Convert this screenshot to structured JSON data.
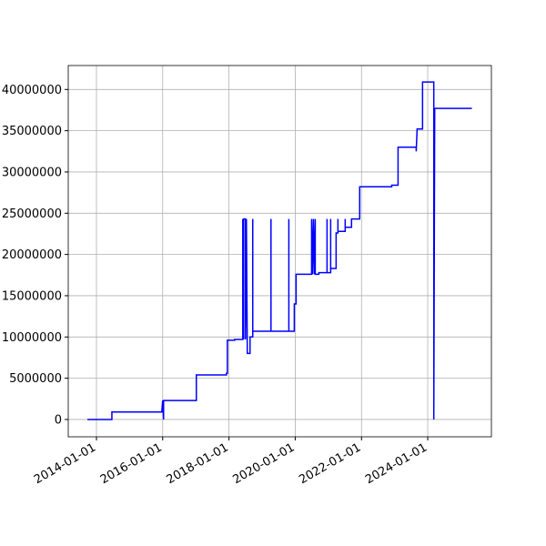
{
  "chart_data": {
    "type": "line",
    "x": [
      "2013-09-23",
      "2014-06-20",
      "2014-06-20",
      "2015-12-22",
      "2016-01-01",
      "2016-01-11",
      "2016-01-11",
      "2017-01-06",
      "2017-01-06",
      "2017-12-04",
      "2017-12-04",
      "2017-12-14",
      "2017-12-14",
      "2018-03-04",
      "2018-03-04",
      "2018-06-02",
      "2018-06-02",
      "2018-06-12",
      "2018-06-12",
      "2018-07-02",
      "2018-07-02",
      "2018-07-12",
      "2018-07-22",
      "2018-08-21",
      "2018-08-21",
      "2018-09-20",
      "2018-09-20",
      "2018-09-20",
      "2019-04-09",
      "2019-04-09",
      "2019-04-09",
      "2019-10-23",
      "2019-10-23",
      "2019-10-23",
      "2019-12-22",
      "2019-12-22",
      "2020-01-11",
      "2020-01-11",
      "2020-06-30",
      "2020-06-30",
      "2020-07-10",
      "2020-07-20",
      "2020-07-30",
      "2020-08-09",
      "2020-08-09",
      "2020-09-18",
      "2020-09-18",
      "2020-12-17",
      "2020-12-17",
      "2020-12-17",
      "2021-01-26",
      "2021-01-26",
      "2021-01-26",
      "2021-03-27",
      "2021-03-27",
      "2021-04-16",
      "2021-04-16",
      "2021-04-16",
      "2021-07-05",
      "2021-07-05",
      "2021-07-05",
      "2021-09-13",
      "2021-09-13",
      "2021-12-12",
      "2021-12-12",
      "2022-11-30",
      "2022-11-30",
      "2023-02-08",
      "2023-02-08",
      "2023-08-27",
      "2023-08-27",
      "2023-09-06",
      "2023-11-05",
      "2023-11-05",
      "2024-03-08",
      "2024-03-08",
      "2024-03-18",
      "2025-05-02"
    ],
    "series": [
      {
        "color": "#0000ff",
        "values": [
          0,
          0,
          900000,
          900000,
          2300000,
          0,
          2300000,
          2300000,
          5400000,
          5400000,
          5600000,
          5600000,
          9600000,
          9600000,
          9700000,
          9700000,
          24300000,
          9700000,
          24300000,
          24300000,
          9700000,
          24300000,
          8000000,
          8000000,
          10000000,
          10000000,
          24300000,
          10700000,
          10700000,
          24300000,
          10700000,
          10700000,
          24300000,
          10700000,
          10700000,
          14000000,
          14000000,
          17600000,
          17600000,
          24300000,
          17600000,
          24300000,
          17600000,
          24300000,
          17600000,
          17600000,
          17800000,
          17800000,
          24300000,
          17800000,
          17800000,
          24300000,
          18300000,
          18300000,
          22600000,
          22600000,
          24300000,
          22800000,
          22800000,
          24300000,
          23300000,
          23300000,
          24300000,
          24300000,
          28200000,
          28200000,
          28400000,
          28400000,
          33000000,
          33000000,
          32500000,
          35200000,
          35200000,
          40900000,
          40900000,
          0,
          37700000,
          37700000
        ]
      }
    ],
    "xlim": [
      "2013-02-24",
      "2025-12-03"
    ],
    "xticks": [
      "2014-01-01",
      "2016-01-01",
      "2018-01-01",
      "2020-01-01",
      "2022-01-01",
      "2024-01-01"
    ],
    "ylim": [
      -2100000,
      42900000
    ],
    "yticks": [
      0,
      5000000,
      10000000,
      15000000,
      20000000,
      25000000,
      30000000,
      35000000,
      40000000
    ],
    "grid": true
  }
}
